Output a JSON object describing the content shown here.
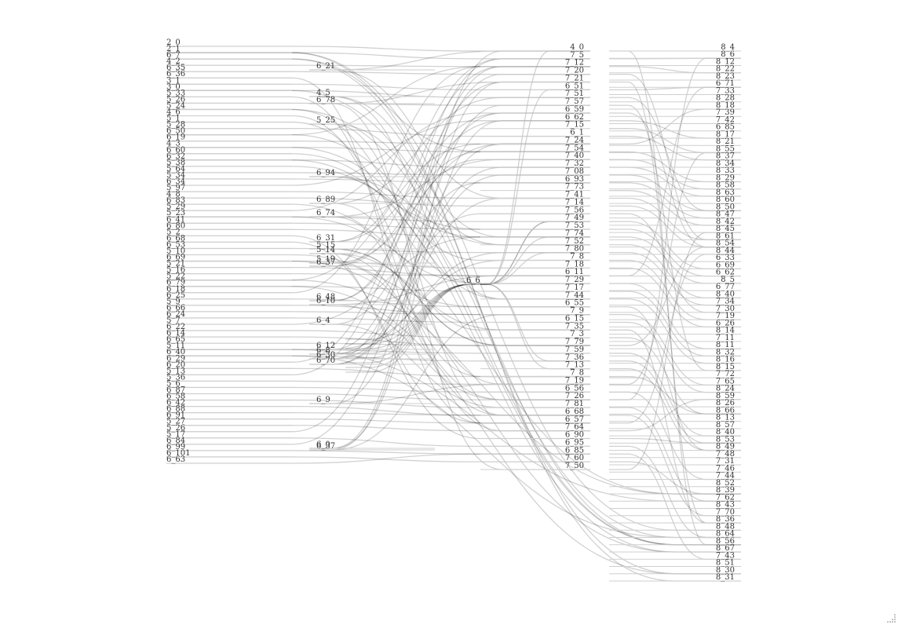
{
  "diagram": {
    "type": "sankey",
    "columns": [
      {
        "name": "layer-1",
        "nodes": [
          "2_0",
          "2_1",
          "6_7",
          "4_2",
          "6_35",
          "6_36",
          "3_1",
          "3_0",
          "5_33",
          "5_26",
          "5_24",
          "4_6",
          "5_1",
          "5_28",
          "6_50",
          "6_19",
          "4_3",
          "6_60",
          "6_32",
          "5_38",
          "5_64",
          "5_34",
          "6_34",
          "5_97",
          "4_8",
          "6_83",
          "5_29",
          "5_23",
          "6_41",
          "6_80",
          "5_2",
          "6_68",
          "6_53",
          "5_10",
          "6_69",
          "5_21",
          "5_16",
          "5_22",
          "6_79",
          "6_18",
          "6_25",
          "5_9",
          "6_66",
          "6_24",
          "5_7",
          "6_22",
          "6_14",
          "6_65",
          "5_11",
          "6_40",
          "6_29",
          "6_20",
          "5_13",
          "5_36",
          "5_6",
          "6_87",
          "6_58",
          "6_42",
          "6_88",
          "6_91",
          "5_27",
          "5_26",
          "5_17",
          "6_84",
          "6_99",
          "6_101",
          "6_63"
        ]
      },
      {
        "name": "layer-2",
        "nodes": [
          "6_21",
          "4_5",
          "6_78",
          "5_25",
          "6_94",
          "6_89",
          "6_74",
          "6_31",
          "5_15",
          "5_14",
          "5_19",
          "6_37",
          "6_48",
          "6_10",
          "6_4",
          "6_12",
          "6_8",
          "6_30",
          "6_70",
          "6_9",
          "6_0",
          "6_37b"
        ]
      },
      {
        "name": "layer-2b",
        "nodes": [
          "6_6"
        ]
      },
      {
        "name": "layer-3",
        "nodes": [
          "4_0",
          "7_5",
          "7_12",
          "7_20",
          "7_21",
          "6_51",
          "7_51",
          "7_57",
          "6_59",
          "6_62",
          "7_15",
          "6_1",
          "7_24",
          "7_54",
          "7_40",
          "7_32",
          "7_08",
          "6_93",
          "7_73",
          "7_41",
          "7_14",
          "7_56",
          "7_49",
          "7_53",
          "7_74",
          "7_52",
          "7_80",
          "7_8",
          "7_18",
          "6_11",
          "7_29",
          "7_17",
          "7_44",
          "6_55",
          "7_9",
          "6_15",
          "7_35",
          "7_3",
          "7_79",
          "7_59",
          "7_36",
          "7_13",
          "7_8b",
          "7_19",
          "6_56",
          "7_26",
          "7_81",
          "6_68",
          "6_57",
          "7_64",
          "6_90",
          "6_95",
          "6_85",
          "7_60",
          "7_50"
        ]
      },
      {
        "name": "layer-4",
        "nodes": [
          "8_4",
          "8_6",
          "8_12",
          "8_22",
          "8_23",
          "6_71",
          "7_33",
          "8_28",
          "8_18",
          "7_39",
          "7_42",
          "6_85",
          "8_17",
          "8_21",
          "8_55",
          "8_37",
          "8_34",
          "8_33",
          "8_29",
          "8_58",
          "8_63",
          "8_60",
          "8_50",
          "8_47",
          "8_42",
          "8_45",
          "8_61",
          "8_54",
          "8_44",
          "6_33",
          "6_69",
          "6_62",
          "8_5",
          "6_77",
          "8_40",
          "7_34",
          "7_30",
          "7_19",
          "6_26",
          "8_14",
          "7_11",
          "8_11",
          "8_32",
          "8_16",
          "8_15",
          "7_72",
          "7_65",
          "8_24",
          "8_59",
          "8_26",
          "8_66",
          "8_13",
          "8_57",
          "8_40b",
          "8_53",
          "8_49",
          "7_48",
          "7_31",
          "7_46",
          "7_44",
          "8_52",
          "8_39",
          "7_62",
          "8_43",
          "7_70",
          "8_36",
          "8_48",
          "8_64",
          "8_56",
          "8_67",
          "7_43",
          "8_51",
          "8_30",
          "8_31"
        ]
      }
    ]
  },
  "colors": {
    "link": "#000000",
    "label": "#333333",
    "node": "#cfcfcf",
    "background": "#ffffff"
  },
  "icons": {
    "resize": "resize-grip-icon"
  }
}
